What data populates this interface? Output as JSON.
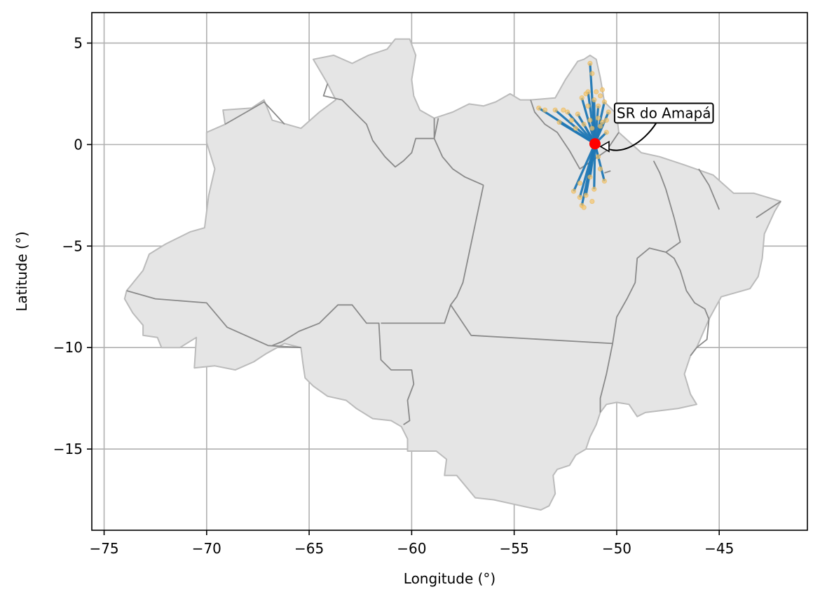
{
  "chart_data": {
    "type": "map",
    "xlabel": "Longitude (°)",
    "ylabel": "Latitude (°)",
    "xlim": [
      -75.6,
      -40.7
    ],
    "ylim": [
      -19.0,
      6.5
    ],
    "grid": true,
    "xticks": [
      -75,
      -70,
      -65,
      -60,
      -55,
      -50,
      -45
    ],
    "yticks": [
      5,
      0,
      -5,
      -10,
      -15
    ],
    "xtick_labels": [
      "−75",
      "−70",
      "−65",
      "−60",
      "−55",
      "−50",
      "−45"
    ],
    "ytick_labels": [
      "5",
      "0",
      "−5",
      "−10",
      "−15"
    ],
    "annotation": {
      "text": "SR do Amapá",
      "target": [
        -51.06,
        0.04
      ]
    },
    "hub": {
      "lon": -51.06,
      "lat": 0.04,
      "color": "#ff0000"
    },
    "connection_color": "#1f77b4",
    "point_color": "#f5c46a",
    "region_fill": "#e5e5e5",
    "region_edge": "#bbbbbb",
    "state_line_color": "#8a8a8a",
    "outline": [
      [
        -73.9,
        -7.2
      ],
      [
        -73.1,
        -6.2
      ],
      [
        -72.8,
        -5.4
      ],
      [
        -72.0,
        -4.9
      ],
      [
        -70.8,
        -4.3
      ],
      [
        -70.1,
        -4.1
      ],
      [
        -69.9,
        -2.5
      ],
      [
        -69.6,
        -1.2
      ],
      [
        -70.0,
        0.1
      ],
      [
        -70.0,
        0.6
      ],
      [
        -69.1,
        1.0
      ],
      [
        -69.2,
        1.7
      ],
      [
        -67.8,
        1.8
      ],
      [
        -67.2,
        2.2
      ],
      [
        -66.8,
        1.2
      ],
      [
        -65.4,
        0.8
      ],
      [
        -64.5,
        1.6
      ],
      [
        -63.7,
        2.2
      ],
      [
        -64.1,
        3.0
      ],
      [
        -64.8,
        4.2
      ],
      [
        -63.8,
        4.4
      ],
      [
        -62.9,
        4.0
      ],
      [
        -62.1,
        4.4
      ],
      [
        -61.2,
        4.7
      ],
      [
        -60.8,
        5.2
      ],
      [
        -60.1,
        5.2
      ],
      [
        -59.8,
        4.4
      ],
      [
        -60.0,
        3.2
      ],
      [
        -59.9,
        2.4
      ],
      [
        -59.6,
        1.7
      ],
      [
        -58.9,
        1.3
      ],
      [
        -58.0,
        1.6
      ],
      [
        -57.2,
        2.0
      ],
      [
        -56.5,
        1.9
      ],
      [
        -55.9,
        2.1
      ],
      [
        -55.2,
        2.5
      ],
      [
        -54.7,
        2.2
      ],
      [
        -54.2,
        2.2
      ],
      [
        -53.0,
        2.3
      ],
      [
        -52.5,
        3.2
      ],
      [
        -51.9,
        4.1
      ],
      [
        -51.6,
        4.2
      ],
      [
        -51.3,
        4.4
      ],
      [
        -51.0,
        4.2
      ],
      [
        -50.8,
        3.3
      ],
      [
        -50.6,
        2.1
      ],
      [
        -50.0,
        1.5
      ],
      [
        -49.9,
        0.6
      ],
      [
        -48.8,
        -0.4
      ],
      [
        -47.9,
        -0.6
      ],
      [
        -46.7,
        -1.0
      ],
      [
        -45.3,
        -1.5
      ],
      [
        -44.3,
        -2.4
      ],
      [
        -43.3,
        -2.4
      ],
      [
        -42.0,
        -2.8
      ],
      [
        -42.3,
        -3.3
      ],
      [
        -42.8,
        -4.4
      ],
      [
        -42.9,
        -5.6
      ],
      [
        -43.1,
        -6.5
      ],
      [
        -43.5,
        -7.1
      ],
      [
        -44.9,
        -7.5
      ],
      [
        -45.5,
        -8.6
      ],
      [
        -46.1,
        -10.0
      ],
      [
        -46.4,
        -10.4
      ],
      [
        -46.7,
        -11.3
      ],
      [
        -46.4,
        -12.3
      ],
      [
        -46.1,
        -12.8
      ],
      [
        -47.0,
        -13.0
      ],
      [
        -48.6,
        -13.2
      ],
      [
        -49.0,
        -13.4
      ],
      [
        -49.4,
        -12.8
      ],
      [
        -50.0,
        -12.7
      ],
      [
        -50.5,
        -12.8
      ],
      [
        -50.8,
        -13.2
      ],
      [
        -51.0,
        -13.8
      ],
      [
        -51.3,
        -14.4
      ],
      [
        -51.5,
        -15.0
      ],
      [
        -52.0,
        -15.3
      ],
      [
        -52.3,
        -15.8
      ],
      [
        -52.9,
        -16.0
      ],
      [
        -53.1,
        -16.3
      ],
      [
        -53.0,
        -17.2
      ],
      [
        -53.3,
        -17.8
      ],
      [
        -53.7,
        -18.0
      ],
      [
        -54.2,
        -17.9
      ],
      [
        -55.1,
        -17.7
      ],
      [
        -56.0,
        -17.5
      ],
      [
        -56.9,
        -17.4
      ],
      [
        -57.8,
        -16.3
      ],
      [
        -58.4,
        -16.3
      ],
      [
        -58.3,
        -15.5
      ],
      [
        -58.8,
        -15.1
      ],
      [
        -60.2,
        -15.1
      ],
      [
        -60.2,
        -14.5
      ],
      [
        -60.5,
        -13.9
      ],
      [
        -61.0,
        -13.6
      ],
      [
        -61.9,
        -13.5
      ],
      [
        -62.7,
        -13.0
      ],
      [
        -63.2,
        -12.6
      ],
      [
        -64.1,
        -12.4
      ],
      [
        -64.8,
        -11.9
      ],
      [
        -65.2,
        -11.5
      ],
      [
        -65.3,
        -10.8
      ],
      [
        -65.4,
        -10.0
      ],
      [
        -66.2,
        -9.8
      ],
      [
        -67.1,
        -10.3
      ],
      [
        -67.7,
        -10.7
      ],
      [
        -68.6,
        -11.1
      ],
      [
        -69.6,
        -10.9
      ],
      [
        -70.6,
        -11.0
      ],
      [
        -70.5,
        -9.5
      ],
      [
        -71.3,
        -10.0
      ],
      [
        -72.2,
        -10.0
      ],
      [
        -72.4,
        -9.5
      ],
      [
        -73.1,
        -9.4
      ],
      [
        -73.1,
        -8.9
      ],
      [
        -73.6,
        -8.3
      ],
      [
        -74.0,
        -7.6
      ],
      [
        -73.9,
        -7.2
      ]
    ],
    "state_borders": [
      [
        [
          -73.9,
          -7.2
        ],
        [
          -72.5,
          -7.6
        ],
        [
          -70.0,
          -7.8
        ],
        [
          -69.0,
          -9.0
        ],
        [
          -67.0,
          -9.9
        ],
        [
          -65.4,
          -10.0
        ]
      ],
      [
        [
          -66.8,
          -9.9
        ],
        [
          -66.3,
          -9.7
        ],
        [
          -65.5,
          -9.2
        ],
        [
          -64.5,
          -8.8
        ],
        [
          -63.6,
          -7.9
        ],
        [
          -62.9,
          -7.9
        ],
        [
          -62.2,
          -8.8
        ],
        [
          -61.6,
          -8.8
        ],
        [
          -61.5,
          -10.6
        ],
        [
          -61.0,
          -11.1
        ],
        [
          -60.0,
          -11.1
        ],
        [
          -59.9,
          -11.8
        ],
        [
          -60.2,
          -12.6
        ],
        [
          -60.1,
          -13.6
        ],
        [
          -60.4,
          -13.8
        ]
      ],
      [
        [
          -61.5,
          -8.8
        ],
        [
          -58.4,
          -8.8
        ],
        [
          -58.1,
          -7.9
        ],
        [
          -57.8,
          -7.5
        ],
        [
          -57.5,
          -6.8
        ],
        [
          -56.5,
          -2.0
        ]
      ],
      [
        [
          -58.1,
          -7.9
        ],
        [
          -57.1,
          -9.4
        ],
        [
          -50.2,
          -9.8
        ]
      ],
      [
        [
          -69.1,
          1.0
        ],
        [
          -67.2,
          2.1
        ],
        [
          -66.2,
          1.0
        ]
      ],
      [
        [
          -64.1,
          3.0
        ],
        [
          -64.3,
          2.4
        ],
        [
          -63.4,
          2.2
        ],
        [
          -62.8,
          1.6
        ],
        [
          -62.2,
          1.0
        ],
        [
          -61.9,
          0.2
        ],
        [
          -61.3,
          -0.6
        ],
        [
          -60.8,
          -1.1
        ],
        [
          -60.4,
          -0.8
        ],
        [
          -60.0,
          -0.4
        ],
        [
          -59.8,
          0.3
        ],
        [
          -58.9,
          0.3
        ],
        [
          -58.7,
          1.3
        ]
      ],
      [
        [
          -58.9,
          1.3
        ],
        [
          -58.9,
          0.3
        ],
        [
          -58.5,
          -0.6
        ],
        [
          -58.0,
          -1.2
        ],
        [
          -57.4,
          -1.6
        ],
        [
          -56.5,
          -2.0
        ]
      ],
      [
        [
          -54.2,
          2.2
        ],
        [
          -54.0,
          1.6
        ],
        [
          -53.5,
          1.0
        ],
        [
          -52.9,
          0.6
        ],
        [
          -52.3,
          -0.3
        ],
        [
          -51.8,
          -1.2
        ],
        [
          -51.2,
          -0.8
        ],
        [
          -50.5,
          -0.3
        ],
        [
          -49.9,
          0.6
        ]
      ],
      [
        [
          -50.6,
          -1.4
        ],
        [
          -50.3,
          -1.3
        ]
      ],
      [
        [
          -48.2,
          -0.8
        ],
        [
          -47.9,
          -1.4
        ],
        [
          -47.6,
          -2.2
        ],
        [
          -47.2,
          -3.6
        ],
        [
          -46.9,
          -4.8
        ],
        [
          -47.6,
          -5.3
        ],
        [
          -48.4,
          -5.1
        ],
        [
          -49.0,
          -5.6
        ],
        [
          -49.1,
          -6.8
        ],
        [
          -49.5,
          -7.6
        ],
        [
          -50.0,
          -8.5
        ],
        [
          -50.2,
          -9.8
        ],
        [
          -50.5,
          -11.3
        ],
        [
          -50.8,
          -12.5
        ],
        [
          -50.8,
          -13.2
        ]
      ],
      [
        [
          -47.6,
          -5.3
        ],
        [
          -47.2,
          -5.6
        ],
        [
          -46.9,
          -6.2
        ],
        [
          -46.6,
          -7.2
        ],
        [
          -46.2,
          -7.8
        ],
        [
          -45.7,
          -8.1
        ],
        [
          -45.5,
          -8.6
        ],
        [
          -45.6,
          -9.6
        ],
        [
          -46.1,
          -10.0
        ],
        [
          -46.4,
          -10.4
        ]
      ],
      [
        [
          -46.0,
          -1.2
        ],
        [
          -45.5,
          -2.0
        ],
        [
          -45.0,
          -3.2
        ]
      ],
      [
        [
          -42.0,
          -2.8
        ],
        [
          -43.2,
          -3.6
        ]
      ]
    ],
    "hub_connections": [
      [
        -53.8,
        1.8
      ],
      [
        -53.0,
        1.7
      ],
      [
        -52.4,
        1.6
      ],
      [
        -52.8,
        1.1
      ],
      [
        -51.9,
        1.5
      ],
      [
        -51.7,
        2.3
      ],
      [
        -51.4,
        2.6
      ],
      [
        -51.3,
        4.0
      ],
      [
        -51.1,
        2.2
      ],
      [
        -50.9,
        1.9
      ],
      [
        -50.6,
        2.1
      ],
      [
        -50.4,
        1.6
      ],
      [
        -50.7,
        1.1
      ],
      [
        -50.5,
        0.6
      ],
      [
        -50.9,
        -0.6
      ],
      [
        -50.6,
        -1.8
      ],
      [
        -51.1,
        -2.2
      ],
      [
        -51.5,
        -2.5
      ],
      [
        -51.7,
        -3.0
      ],
      [
        -51.8,
        -2.6
      ],
      [
        -52.1,
        -2.3
      ],
      [
        -51.3,
        -1.6
      ],
      [
        -50.8,
        0.9
      ],
      [
        -51.6,
        1.0
      ]
    ],
    "points": [
      [
        -53.8,
        1.8
      ],
      [
        -53.5,
        1.7
      ],
      [
        -53.0,
        1.7
      ],
      [
        -52.6,
        1.7
      ],
      [
        -52.4,
        1.6
      ],
      [
        -52.8,
        1.1
      ],
      [
        -52.2,
        1.2
      ],
      [
        -51.9,
        1.5
      ],
      [
        -51.7,
        2.3
      ],
      [
        -51.5,
        2.5
      ],
      [
        -51.4,
        2.6
      ],
      [
        -51.3,
        4.0
      ],
      [
        -51.2,
        3.5
      ],
      [
        -51.1,
        2.2
      ],
      [
        -50.9,
        1.9
      ],
      [
        -50.8,
        2.4
      ],
      [
        -50.6,
        2.1
      ],
      [
        -50.4,
        1.6
      ],
      [
        -50.5,
        1.2
      ],
      [
        -50.7,
        1.1
      ],
      [
        -50.5,
        0.6
      ],
      [
        -50.9,
        -0.6
      ],
      [
        -50.6,
        -1.8
      ],
      [
        -51.1,
        -2.2
      ],
      [
        -51.5,
        -2.5
      ],
      [
        -51.7,
        -3.0
      ],
      [
        -51.6,
        -3.1
      ],
      [
        -51.8,
        -2.6
      ],
      [
        -52.1,
        -2.3
      ],
      [
        -51.3,
        -1.6
      ],
      [
        -50.8,
        0.9
      ],
      [
        -51.6,
        1.0
      ],
      [
        -51.4,
        1.9
      ],
      [
        -50.9,
        1.3
      ],
      [
        -51.2,
        0.8
      ],
      [
        -51.0,
        2.6
      ],
      [
        -50.7,
        2.7
      ],
      [
        -51.3,
        1.2
      ],
      [
        -52.0,
        0.8
      ],
      [
        -51.8,
        -1.9
      ],
      [
        -51.2,
        -2.8
      ],
      [
        -50.8,
        -1.2
      ]
    ]
  }
}
